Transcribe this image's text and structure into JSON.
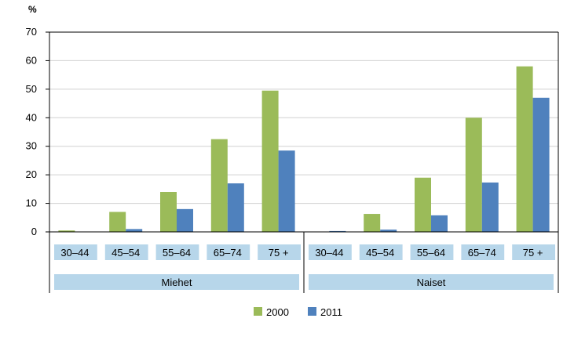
{
  "chart_data": {
    "type": "bar",
    "unit_label": "%",
    "ylim": [
      0,
      70
    ],
    "yticks": [
      0,
      10,
      20,
      30,
      40,
      50,
      60,
      70
    ],
    "grid": true,
    "legend_position": "bottom",
    "groups": [
      {
        "name": "Miehet",
        "categories": [
          "30–44",
          "45–54",
          "55–64",
          "65–74",
          "75 +"
        ]
      },
      {
        "name": "Naiset",
        "categories": [
          "30–44",
          "45–54",
          "55–64",
          "65–74",
          "75 +"
        ]
      }
    ],
    "series": [
      {
        "name": "2000",
        "color": "#9bbb59",
        "values": [
          0.5,
          7,
          14,
          32.5,
          49.5,
          0,
          6.3,
          19,
          40,
          58
        ]
      },
      {
        "name": "2011",
        "color": "#4f81bd",
        "values": [
          0,
          1,
          8,
          17,
          28.5,
          0.3,
          0.8,
          5.8,
          17.3,
          47
        ]
      }
    ],
    "label_highlight_color": "#b7d6ea"
  }
}
